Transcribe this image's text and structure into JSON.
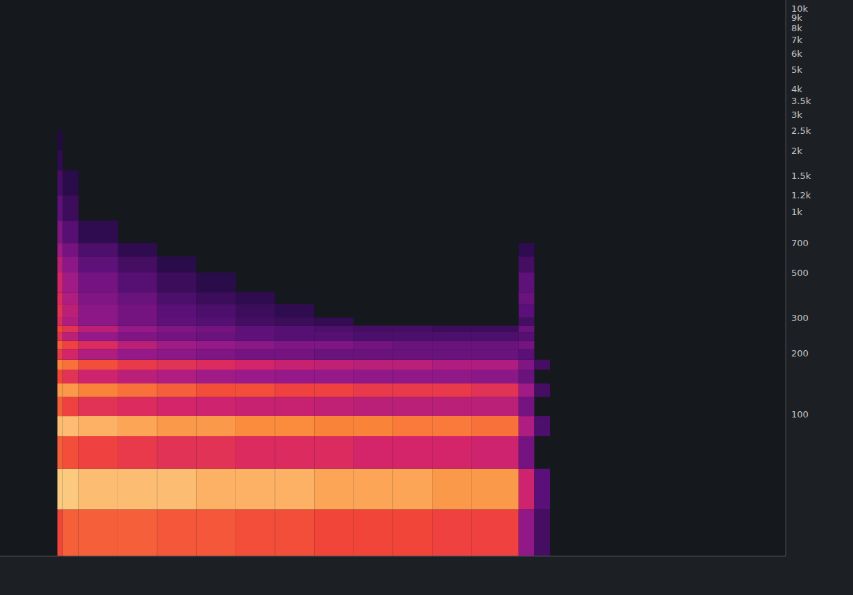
{
  "chart_data": {
    "type": "heatmap",
    "log": "y",
    "grid": false,
    "tick_labels": "y",
    "xlim": [
      0,
      100
    ],
    "ylim": [
      20,
      11025
    ],
    "yticks": [
      100,
      200,
      300,
      500,
      700,
      {
        "value": 1000,
        "label": "1k"
      },
      {
        "value": 1200,
        "label": "1.2k"
      },
      {
        "value": 1500,
        "label": "1.5k"
      },
      {
        "value": 2000,
        "label": "2k"
      },
      {
        "value": 2500,
        "label": "2.5k"
      },
      {
        "value": 3000,
        "label": "3k"
      },
      {
        "value": 3500,
        "label": "3.5k"
      },
      {
        "value": 4000,
        "label": "4k"
      },
      {
        "value": 5000,
        "label": "5k"
      },
      {
        "value": 6000,
        "label": "6k"
      },
      {
        "value": 7000,
        "label": "7k"
      },
      {
        "value": 8000,
        "label": "8k"
      },
      {
        "value": 9000,
        "label": "9k"
      },
      {
        "value": 10000,
        "label": "10k"
      }
    ],
    "time_edges": [
      7.3,
      8,
      10,
      15,
      20,
      25,
      30,
      35,
      40,
      45,
      50,
      55,
      60,
      66,
      68,
      70
    ],
    "freq_edges": [
      20,
      34,
      54,
      78,
      98,
      122,
      142,
      166,
      186,
      210,
      230,
      254,
      274,
      300,
      350,
      400,
      500,
      600,
      700,
      900,
      1200,
      1600,
      2000,
      2500
    ],
    "clim": [
      -60,
      0
    ],
    "cells": [
      [
        -15,
        -12,
        -12,
        -12,
        -13,
        -13,
        -14,
        -14,
        -15,
        -15,
        -15,
        -16,
        -16,
        -35,
        -50
      ],
      [
        -2,
        -2,
        -3,
        -3,
        -3,
        -4,
        -4,
        -4,
        -5,
        -5,
        -5,
        -6,
        -6,
        -25,
        -45
      ],
      [
        -12,
        -14,
        -16,
        -18,
        -20,
        -20,
        -22,
        -22,
        -22,
        -24,
        -24,
        -24,
        -25,
        -40,
        null
      ],
      [
        -3,
        -3,
        -4,
        -5,
        -6,
        -6,
        -7,
        -7,
        -8,
        -8,
        -9,
        -9,
        -10,
        -30,
        -48
      ],
      [
        -12,
        -16,
        -20,
        -22,
        -24,
        -25,
        -26,
        -26,
        -27,
        -28,
        -28,
        -28,
        -28,
        -40,
        null
      ],
      [
        -6,
        -6,
        -8,
        -10,
        -12,
        -14,
        -14,
        -16,
        -16,
        -18,
        -18,
        -18,
        -20,
        -32,
        -50
      ],
      [
        -15,
        -20,
        -25,
        -28,
        -30,
        -32,
        -33,
        -34,
        -34,
        -35,
        -35,
        -35,
        -36,
        -42,
        null
      ],
      [
        -8,
        -10,
        -14,
        -18,
        -20,
        -22,
        -24,
        -26,
        -27,
        -28,
        -28,
        -30,
        -30,
        -38,
        -50
      ],
      [
        -18,
        -24,
        -30,
        -34,
        -36,
        -38,
        -40,
        -40,
        -42,
        -42,
        -42,
        -42,
        -42,
        -45,
        null
      ],
      [
        -12,
        -16,
        -22,
        -28,
        -32,
        -34,
        -36,
        -38,
        -38,
        -40,
        -42,
        -42,
        -42,
        -40,
        null
      ],
      [
        -20,
        -28,
        -34,
        -38,
        -40,
        -42,
        -44,
        -46,
        -46,
        -48,
        -48,
        -48,
        -48,
        -46,
        null
      ],
      [
        -15,
        -20,
        -28,
        -34,
        -38,
        -40,
        -44,
        -46,
        -48,
        -50,
        -50,
        -52,
        -52,
        -42,
        null
      ],
      [
        -22,
        -30,
        -36,
        -40,
        -44,
        -46,
        -50,
        -52,
        -54,
        null,
        null,
        null,
        null,
        -50,
        null
      ],
      [
        -20,
        -28,
        -36,
        -40,
        -45,
        -48,
        -52,
        -55,
        null,
        null,
        null,
        null,
        null,
        -45,
        null
      ],
      [
        -22,
        -30,
        -38,
        -42,
        -48,
        -52,
        -55,
        null,
        null,
        null,
        null,
        null,
        null,
        -42,
        null
      ],
      [
        -24,
        -32,
        -40,
        -46,
        -52,
        -56,
        null,
        null,
        null,
        null,
        null,
        null,
        null,
        -44,
        null
      ],
      [
        -28,
        -36,
        -44,
        -50,
        -56,
        null,
        null,
        null,
        null,
        null,
        null,
        null,
        null,
        -50,
        null
      ],
      [
        -32,
        -40,
        -48,
        -55,
        null,
        null,
        null,
        null,
        null,
        null,
        null,
        null,
        null,
        -55,
        null
      ],
      [
        -38,
        -46,
        -55,
        null,
        null,
        null,
        null,
        null,
        null,
        null,
        null,
        null,
        null,
        null,
        null
      ],
      [
        -44,
        -52,
        null,
        null,
        null,
        null,
        null,
        null,
        null,
        null,
        null,
        null,
        null,
        null,
        null
      ],
      [
        -50,
        -56,
        null,
        null,
        null,
        null,
        null,
        null,
        null,
        null,
        null,
        null,
        null,
        null,
        null
      ],
      [
        -55,
        null,
        null,
        null,
        null,
        null,
        null,
        null,
        null,
        null,
        null,
        null,
        null,
        null,
        null
      ],
      [
        -58,
        null,
        null,
        null,
        null,
        null,
        null,
        null,
        null,
        null,
        null,
        null,
        null,
        null,
        null
      ]
    ]
  }
}
